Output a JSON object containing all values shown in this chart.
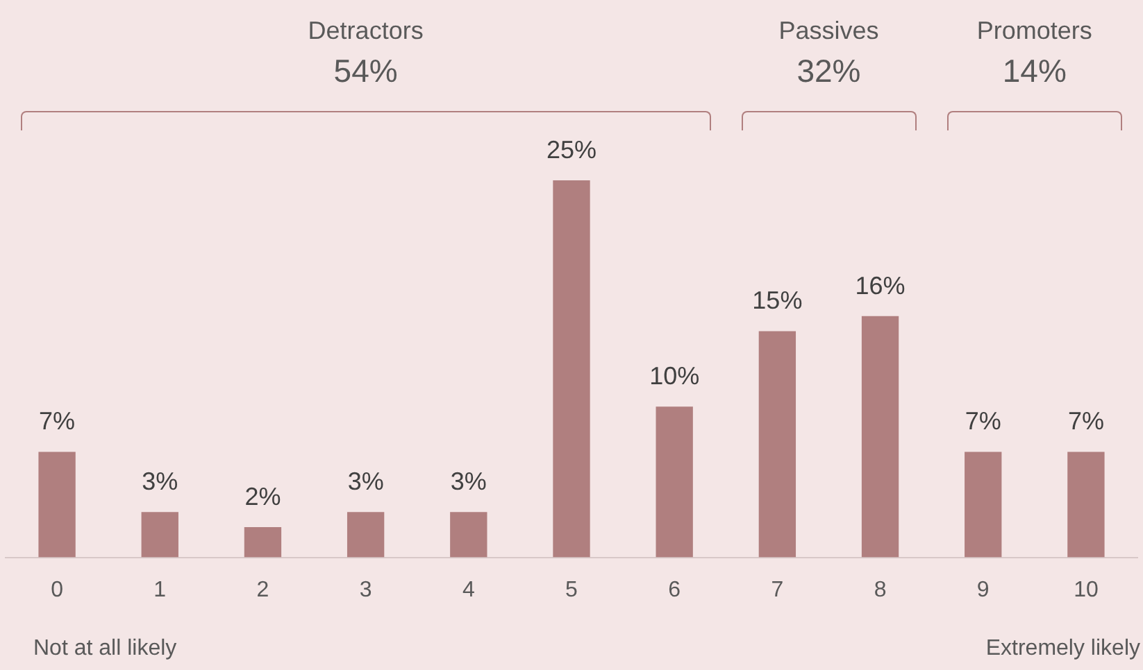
{
  "chart_data": {
    "type": "bar",
    "categories": [
      "0",
      "1",
      "2",
      "3",
      "4",
      "5",
      "6",
      "7",
      "8",
      "9",
      "10"
    ],
    "values": [
      7,
      3,
      2,
      3,
      3,
      25,
      10,
      15,
      16,
      7,
      7
    ],
    "color": "#b07f7f",
    "value_labels": [
      "7%",
      "3%",
      "2%",
      "3%",
      "3%",
      "25%",
      "10%",
      "15%",
      "16%",
      "7%",
      "7%"
    ],
    "annotations": [
      "Detractors",
      "54%",
      "Passives",
      "32%",
      "Promoters",
      "14%",
      "Not at all likely",
      "Extremely likely"
    ],
    "grid": false,
    "legend": false
  }
}
